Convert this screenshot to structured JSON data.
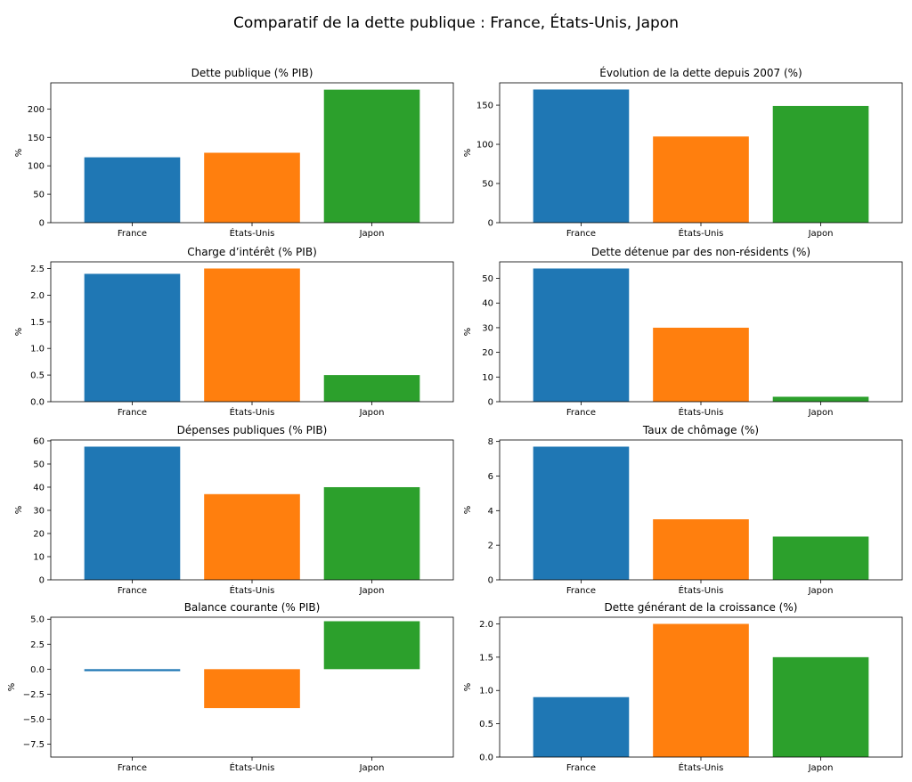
{
  "figure": {
    "title": "Comparatif de la dette publique : France, États-Unis, Japon",
    "series_colors": {
      "France": "#1f77b4",
      "États-Unis": "#ff7f0e",
      "Japon": "#2ca02c"
    }
  },
  "chart_data": [
    {
      "type": "bar",
      "title": "Dette publique (% PIB)",
      "ylabel": "%",
      "categories": [
        "France",
        "États-Unis",
        "Japon"
      ],
      "values": [
        115,
        123,
        234
      ],
      "ylim": [
        0,
        246
      ],
      "yticks": [
        0,
        50,
        100,
        150,
        200
      ],
      "ytick_labels": [
        "0",
        "50",
        "100",
        "150",
        "200"
      ],
      "grid": false
    },
    {
      "type": "bar",
      "title": "Évolution de la dette depuis 2007 (%)",
      "ylabel": "%",
      "categories": [
        "France",
        "États-Unis",
        "Japon"
      ],
      "values": [
        170,
        110,
        149
      ],
      "ylim": [
        0,
        178.5
      ],
      "yticks": [
        0,
        50,
        100,
        150
      ],
      "ytick_labels": [
        "0",
        "50",
        "100",
        "150"
      ],
      "grid": false
    },
    {
      "type": "bar",
      "title": "Charge d’intérêt (% PIB)",
      "ylabel": "%",
      "categories": [
        "France",
        "États-Unis",
        "Japon"
      ],
      "values": [
        2.4,
        2.5,
        0.5
      ],
      "ylim": [
        0,
        2.625
      ],
      "yticks": [
        0,
        0.5,
        1,
        1.5,
        2,
        2.5
      ],
      "ytick_labels": [
        "0.0",
        "0.5",
        "1.0",
        "1.5",
        "2.0",
        "2.5"
      ],
      "grid": false
    },
    {
      "type": "bar",
      "title": "Dette détenue par des non-résidents (%)",
      "ylabel": "%",
      "categories": [
        "France",
        "États-Unis",
        "Japon"
      ],
      "values": [
        54,
        30,
        2
      ],
      "ylim": [
        0,
        56.7
      ],
      "yticks": [
        0,
        10,
        20,
        30,
        40,
        50
      ],
      "ytick_labels": [
        "0",
        "10",
        "20",
        "30",
        "40",
        "50"
      ],
      "grid": false
    },
    {
      "type": "bar",
      "title": "Dépenses publiques (% PIB)",
      "ylabel": "%",
      "categories": [
        "France",
        "États-Unis",
        "Japon"
      ],
      "values": [
        57.5,
        37,
        40
      ],
      "ylim": [
        0,
        60.375
      ],
      "yticks": [
        0,
        10,
        20,
        30,
        40,
        50,
        60
      ],
      "ytick_labels": [
        "0",
        "10",
        "20",
        "30",
        "40",
        "50",
        "60"
      ],
      "grid": false
    },
    {
      "type": "bar",
      "title": "Taux de chômage (%)",
      "ylabel": "%",
      "categories": [
        "France",
        "États-Unis",
        "Japon"
      ],
      "values": [
        7.7,
        3.5,
        2.5
      ],
      "ylim": [
        0,
        8.085
      ],
      "yticks": [
        0,
        2,
        4,
        6,
        8
      ],
      "ytick_labels": [
        "0",
        "2",
        "4",
        "6",
        "8"
      ],
      "grid": false
    },
    {
      "type": "bar",
      "title": "Balance courante (% PIB)",
      "ylabel": "%",
      "categories": [
        "France",
        "États-Unis",
        "Japon"
      ],
      "values": [
        -0.2,
        -3.9,
        4.8
      ],
      "ylim": [
        -8.8,
        5.2
      ],
      "yticks": [
        -7.5,
        -5,
        -2.5,
        0,
        2.5,
        5
      ],
      "ytick_labels": [
        "−7.5",
        "−5.0",
        "−2.5",
        "0.0",
        "2.5",
        "5.0"
      ],
      "grid": false
    },
    {
      "type": "bar",
      "title": "Dette générant de la croissance (%)",
      "ylabel": "%",
      "categories": [
        "France",
        "États-Unis",
        "Japon"
      ],
      "values": [
        0.9,
        2.0,
        1.5
      ],
      "ylim": [
        0,
        2.1
      ],
      "yticks": [
        0,
        0.5,
        1,
        1.5,
        2
      ],
      "ytick_labels": [
        "0.0",
        "0.5",
        "1.0",
        "1.5",
        "2.0"
      ],
      "grid": false
    }
  ]
}
